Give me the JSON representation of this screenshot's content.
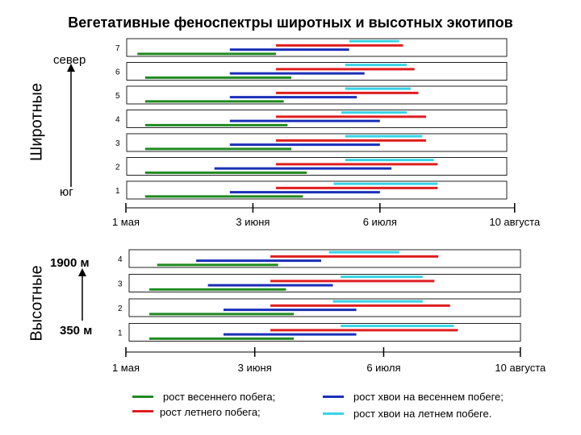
{
  "title": "Вегетативные феноспектры широтных и высотных экотипов",
  "panels_label": {
    "latitude": "Широтные",
    "altitude": "Высотные"
  },
  "latitude_arrow": {
    "top_label": "север",
    "bottom_label": "юг"
  },
  "altitude_arrow": {
    "top_label": "1900 м",
    "bottom_label": "350 м"
  },
  "colors": {
    "spring_shoot": "#1f8a1f",
    "summer_shoot": "#e01e1e",
    "needles_spring": "#1a2fb8",
    "needles_summer": "#36d4e6",
    "frame": "#222222"
  },
  "legend": [
    {
      "key": "spring_shoot",
      "label": "рост весеннего побега;"
    },
    {
      "key": "summer_shoot",
      "label": "рост летнего побега;"
    },
    {
      "key": "needles_spring",
      "label": "рост хвои на весеннем побеге;"
    },
    {
      "key": "needles_summer",
      "label": "рост хвои на летнем побеге."
    }
  ],
  "chart_data": [
    {
      "type": "gantt",
      "panel": "latitude",
      "x_unit": "days since 1 May",
      "x_ticks": [
        {
          "value": 0,
          "label": "1 мая"
        },
        {
          "value": 33,
          "label": "3 июня"
        },
        {
          "value": 66,
          "label": "6 июля"
        },
        {
          "value": 101,
          "label": "10 августа"
        }
      ],
      "rows": [
        {
          "label": "7",
          "bars": [
            {
              "series": "spring_shoot",
              "start": 3,
              "end": 39
            },
            {
              "series": "needles_spring",
              "start": 27,
              "end": 58
            },
            {
              "series": "summer_shoot",
              "start": 39,
              "end": 72
            },
            {
              "series": "needles_summer",
              "start": 58,
              "end": 71
            }
          ]
        },
        {
          "label": "6",
          "bars": [
            {
              "series": "spring_shoot",
              "start": 5,
              "end": 43
            },
            {
              "series": "needles_spring",
              "start": 27,
              "end": 62
            },
            {
              "series": "summer_shoot",
              "start": 39,
              "end": 75
            },
            {
              "series": "needles_summer",
              "start": 57,
              "end": 73
            }
          ]
        },
        {
          "label": "5",
          "bars": [
            {
              "series": "spring_shoot",
              "start": 5,
              "end": 41
            },
            {
              "series": "needles_spring",
              "start": 27,
              "end": 60
            },
            {
              "series": "summer_shoot",
              "start": 39,
              "end": 76
            },
            {
              "series": "needles_summer",
              "start": 57,
              "end": 74
            }
          ]
        },
        {
          "label": "4",
          "bars": [
            {
              "series": "spring_shoot",
              "start": 5,
              "end": 42
            },
            {
              "series": "needles_spring",
              "start": 27,
              "end": 66
            },
            {
              "series": "summer_shoot",
              "start": 39,
              "end": 78
            },
            {
              "series": "needles_summer",
              "start": 56,
              "end": 73
            }
          ]
        },
        {
          "label": "3",
          "bars": [
            {
              "series": "spring_shoot",
              "start": 5,
              "end": 43
            },
            {
              "series": "needles_spring",
              "start": 27,
              "end": 66
            },
            {
              "series": "summer_shoot",
              "start": 39,
              "end": 78
            },
            {
              "series": "needles_summer",
              "start": 57,
              "end": 77
            }
          ]
        },
        {
          "label": "2",
          "bars": [
            {
              "series": "spring_shoot",
              "start": 5,
              "end": 47
            },
            {
              "series": "needles_spring",
              "start": 23,
              "end": 69
            },
            {
              "series": "summer_shoot",
              "start": 39,
              "end": 81
            },
            {
              "series": "needles_summer",
              "start": 57,
              "end": 80
            }
          ]
        },
        {
          "label": "1",
          "bars": [
            {
              "series": "spring_shoot",
              "start": 5,
              "end": 46
            },
            {
              "series": "needles_spring",
              "start": 27,
              "end": 66
            },
            {
              "series": "summer_shoot",
              "start": 39,
              "end": 81
            },
            {
              "series": "needles_summer",
              "start": 54,
              "end": 81
            }
          ]
        }
      ]
    },
    {
      "type": "gantt",
      "panel": "altitude",
      "x_unit": "days since 1 May",
      "x_ticks": [
        {
          "value": 0,
          "label": "1 мая"
        },
        {
          "value": 33,
          "label": "3 июня"
        },
        {
          "value": 66,
          "label": "6 июля"
        },
        {
          "value": 101,
          "label": "10 августа"
        }
      ],
      "rows": [
        {
          "label": "4",
          "bars": [
            {
              "series": "spring_shoot",
              "start": 8,
              "end": 39
            },
            {
              "series": "needles_spring",
              "start": 18,
              "end": 50
            },
            {
              "series": "summer_shoot",
              "start": 37,
              "end": 80
            },
            {
              "series": "needles_summer",
              "start": 52,
              "end": 70
            }
          ]
        },
        {
          "label": "3",
          "bars": [
            {
              "series": "spring_shoot",
              "start": 6,
              "end": 41
            },
            {
              "series": "needles_spring",
              "start": 21,
              "end": 53
            },
            {
              "series": "summer_shoot",
              "start": 37,
              "end": 79
            },
            {
              "series": "needles_summer",
              "start": 55,
              "end": 76
            }
          ]
        },
        {
          "label": "2",
          "bars": [
            {
              "series": "spring_shoot",
              "start": 6,
              "end": 43
            },
            {
              "series": "needles_spring",
              "start": 25,
              "end": 59
            },
            {
              "series": "summer_shoot",
              "start": 37,
              "end": 83
            },
            {
              "series": "needles_summer",
              "start": 53,
              "end": 76
            }
          ]
        },
        {
          "label": "1",
          "bars": [
            {
              "series": "spring_shoot",
              "start": 6,
              "end": 43
            },
            {
              "series": "needles_spring",
              "start": 25,
              "end": 59
            },
            {
              "series": "summer_shoot",
              "start": 37,
              "end": 85
            },
            {
              "series": "needles_summer",
              "start": 55,
              "end": 84
            }
          ]
        }
      ]
    }
  ]
}
